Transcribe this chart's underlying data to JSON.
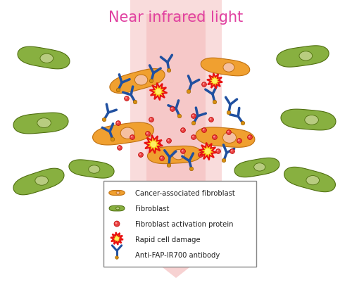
{
  "title": "Near infrared light",
  "title_color": "#e040a0",
  "title_fontsize": 15,
  "bg_color": "#ffffff",
  "nir_strip_color": "#f5c0c0",
  "legend_items": [
    "Cancer-associated fibroblast",
    "Fibroblast",
    "Fibroblast activation protein",
    "Rapid cell damage",
    "Anti-FAP-IR700 antibody"
  ],
  "caf_body_color": "#f0a030",
  "caf_nucleus_color": "#f5c0a0",
  "fibroblast_body_color": "#88b040",
  "fibroblast_nucleus_color": "#b8cc80",
  "fap_color": "#e84040",
  "damage_yellow": "#f8d820",
  "damage_red": "#e81010",
  "antibody_color": "#2050a0"
}
